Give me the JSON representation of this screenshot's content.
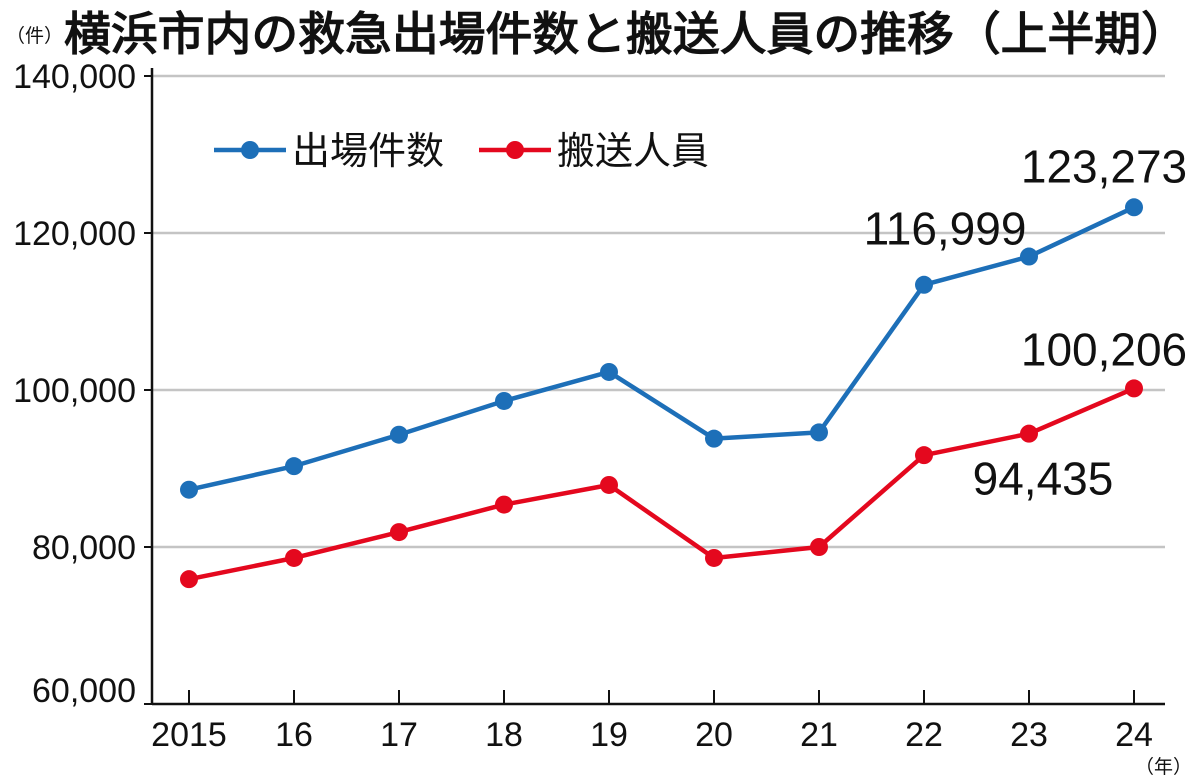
{
  "chart_data": {
    "type": "line",
    "title": "横浜市内の救急出場件数と搬送人員の推移（上半期）",
    "ylabel": "（件）",
    "xlabel": "（年）",
    "categories": [
      "2015",
      "16",
      "17",
      "18",
      "19",
      "20",
      "21",
      "22",
      "23",
      "24"
    ],
    "ylim": [
      60000,
      140000
    ],
    "yticks": [
      60000,
      80000,
      100000,
      120000,
      140000
    ],
    "ytick_labels": [
      "60,000",
      "80,000",
      "100,000",
      "120,000",
      "140,000"
    ],
    "grid": true,
    "legend_position": "top-left",
    "series": [
      {
        "name": "出場件数",
        "color": "#1d6fb8",
        "values": [
          87300,
          90300,
          94300,
          98600,
          102300,
          93800,
          94600,
          113400,
          116999,
          123273
        ],
        "labels": [
          null,
          null,
          null,
          null,
          null,
          null,
          null,
          null,
          "116,999",
          "123,273"
        ]
      },
      {
        "name": "搬送人員",
        "color": "#e4081e",
        "values": [
          75900,
          78600,
          81900,
          85400,
          87900,
          78600,
          80000,
          91700,
          94435,
          100206
        ],
        "labels": [
          null,
          null,
          null,
          null,
          null,
          null,
          null,
          null,
          "94,435",
          "100,206"
        ]
      }
    ]
  }
}
